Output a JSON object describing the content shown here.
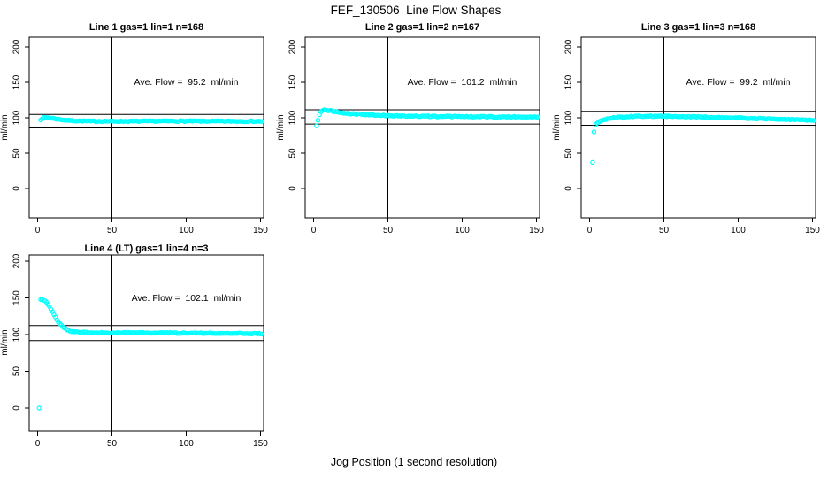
{
  "title": "FEF_130506  Line Flow Shapes",
  "xlabel": "Jog Position (1 second resolution)",
  "point_color": "#00ffff",
  "line_color": "#000000",
  "chart_data": [
    {
      "type": "scatter",
      "title": "Line 1 gas=1 lin=1 n=168",
      "annotation": "Ave. Flow =  95.2  ml/min",
      "ave_flow_ml_min": 95.2,
      "n": 168,
      "ylabel": "ml/min",
      "x_ticks": [
        0,
        50,
        100,
        150
      ],
      "y_ticks": [
        0,
        50,
        100,
        150,
        200
      ],
      "xlim": [
        -6,
        157
      ],
      "ylim": [
        -41,
        214
      ],
      "ref_lines": [
        104.7,
        85.7
      ],
      "vline_x": 50,
      "outliers": [],
      "anchors": [
        [
          2,
          97.5
        ],
        [
          3,
          99
        ],
        [
          4,
          100
        ],
        [
          6,
          100.3
        ],
        [
          9,
          99.7
        ],
        [
          13,
          98.3
        ],
        [
          18,
          96.8
        ],
        [
          25,
          95.8
        ],
        [
          35,
          95.2
        ],
        [
          60,
          95.1
        ],
        [
          90,
          95.4
        ],
        [
          120,
          95.2
        ],
        [
          151,
          95.0
        ]
      ]
    },
    {
      "type": "scatter",
      "title": "Line 2 gas=1 lin=2 n=167",
      "annotation": "Ave. Flow =  101.2  ml/min",
      "ave_flow_ml_min": 101.2,
      "n": 167,
      "ylabel": "ml/min",
      "x_ticks": [
        0,
        50,
        100,
        150
      ],
      "y_ticks": [
        0,
        50,
        100,
        150,
        200
      ],
      "xlim": [
        -6,
        157
      ],
      "ylim": [
        -41,
        214
      ],
      "ref_lines": [
        111.3,
        91.1
      ],
      "vline_x": 50,
      "outliers": [
        [
          2,
          88.5
        ]
      ],
      "anchors": [
        [
          3,
          97
        ],
        [
          4,
          104
        ],
        [
          5,
          108
        ],
        [
          6,
          110
        ],
        [
          8,
          110.8
        ],
        [
          10,
          110.3
        ],
        [
          13,
          109.3
        ],
        [
          17,
          107.8
        ],
        [
          22,
          106.3
        ],
        [
          28,
          105.3
        ],
        [
          35,
          104.3
        ],
        [
          45,
          103.3
        ],
        [
          60,
          102.5
        ],
        [
          80,
          102
        ],
        [
          110,
          101.5
        ],
        [
          151,
          101
        ]
      ]
    },
    {
      "type": "scatter",
      "title": "Line 3 gas=1 lin=3 n=168",
      "annotation": "Ave. Flow =  99.2  ml/min",
      "ave_flow_ml_min": 99.2,
      "n": 168,
      "ylabel": "ml/min",
      "x_ticks": [
        0,
        50,
        100,
        150
      ],
      "y_ticks": [
        0,
        50,
        100,
        150,
        200
      ],
      "xlim": [
        -6,
        157
      ],
      "ylim": [
        -41,
        214
      ],
      "ref_lines": [
        109.1,
        89.3
      ],
      "vline_x": 50,
      "outliers": [
        [
          2,
          37
        ],
        [
          3,
          80
        ]
      ],
      "anchors": [
        [
          4,
          90.5
        ],
        [
          5,
          92.5
        ],
        [
          6,
          94
        ],
        [
          8,
          96
        ],
        [
          10,
          97.5
        ],
        [
          14,
          99.5
        ],
        [
          20,
          101
        ],
        [
          30,
          102
        ],
        [
          45,
          102.3
        ],
        [
          60,
          101.8
        ],
        [
          80,
          100.8
        ],
        [
          100,
          99.8
        ],
        [
          120,
          98.5
        ],
        [
          135,
          97.5
        ],
        [
          151,
          96.5
        ]
      ]
    },
    {
      "type": "scatter",
      "title": "Line 4 (LT) gas=1 lin=4 n=3",
      "annotation": "Ave. Flow =  102.1  ml/min",
      "ave_flow_ml_min": 102.1,
      "n": 3,
      "ylabel": "ml/min",
      "x_ticks": [
        0,
        50,
        100,
        150
      ],
      "y_ticks": [
        0,
        50,
        100,
        150,
        200
      ],
      "xlim": [
        -6,
        157
      ],
      "ylim": [
        -31,
        208
      ],
      "ref_lines": [
        112.3,
        91.9
      ],
      "vline_x": 50,
      "outliers": [
        [
          1,
          0
        ]
      ],
      "anchors": [
        [
          2,
          147.5
        ],
        [
          3,
          148
        ],
        [
          4,
          147.5
        ],
        [
          5,
          146
        ],
        [
          6,
          143.5
        ],
        [
          7,
          140.5
        ],
        [
          8,
          137.5
        ],
        [
          9,
          134
        ],
        [
          10,
          130.5
        ],
        [
          11,
          127
        ],
        [
          12,
          123.5
        ],
        [
          13,
          120.5
        ],
        [
          14,
          117.5
        ],
        [
          15,
          115
        ],
        [
          16,
          112.8
        ],
        [
          17,
          110.8
        ],
        [
          18,
          109
        ],
        [
          19,
          107.5
        ],
        [
          20,
          106.3
        ],
        [
          22,
          104.8
        ],
        [
          25,
          103.6
        ],
        [
          28,
          103.1
        ],
        [
          32,
          102.8
        ],
        [
          40,
          102.6
        ],
        [
          55,
          102.5
        ],
        [
          80,
          102.3
        ],
        [
          110,
          102
        ],
        [
          135,
          101.7
        ],
        [
          151,
          101.2
        ]
      ]
    }
  ]
}
